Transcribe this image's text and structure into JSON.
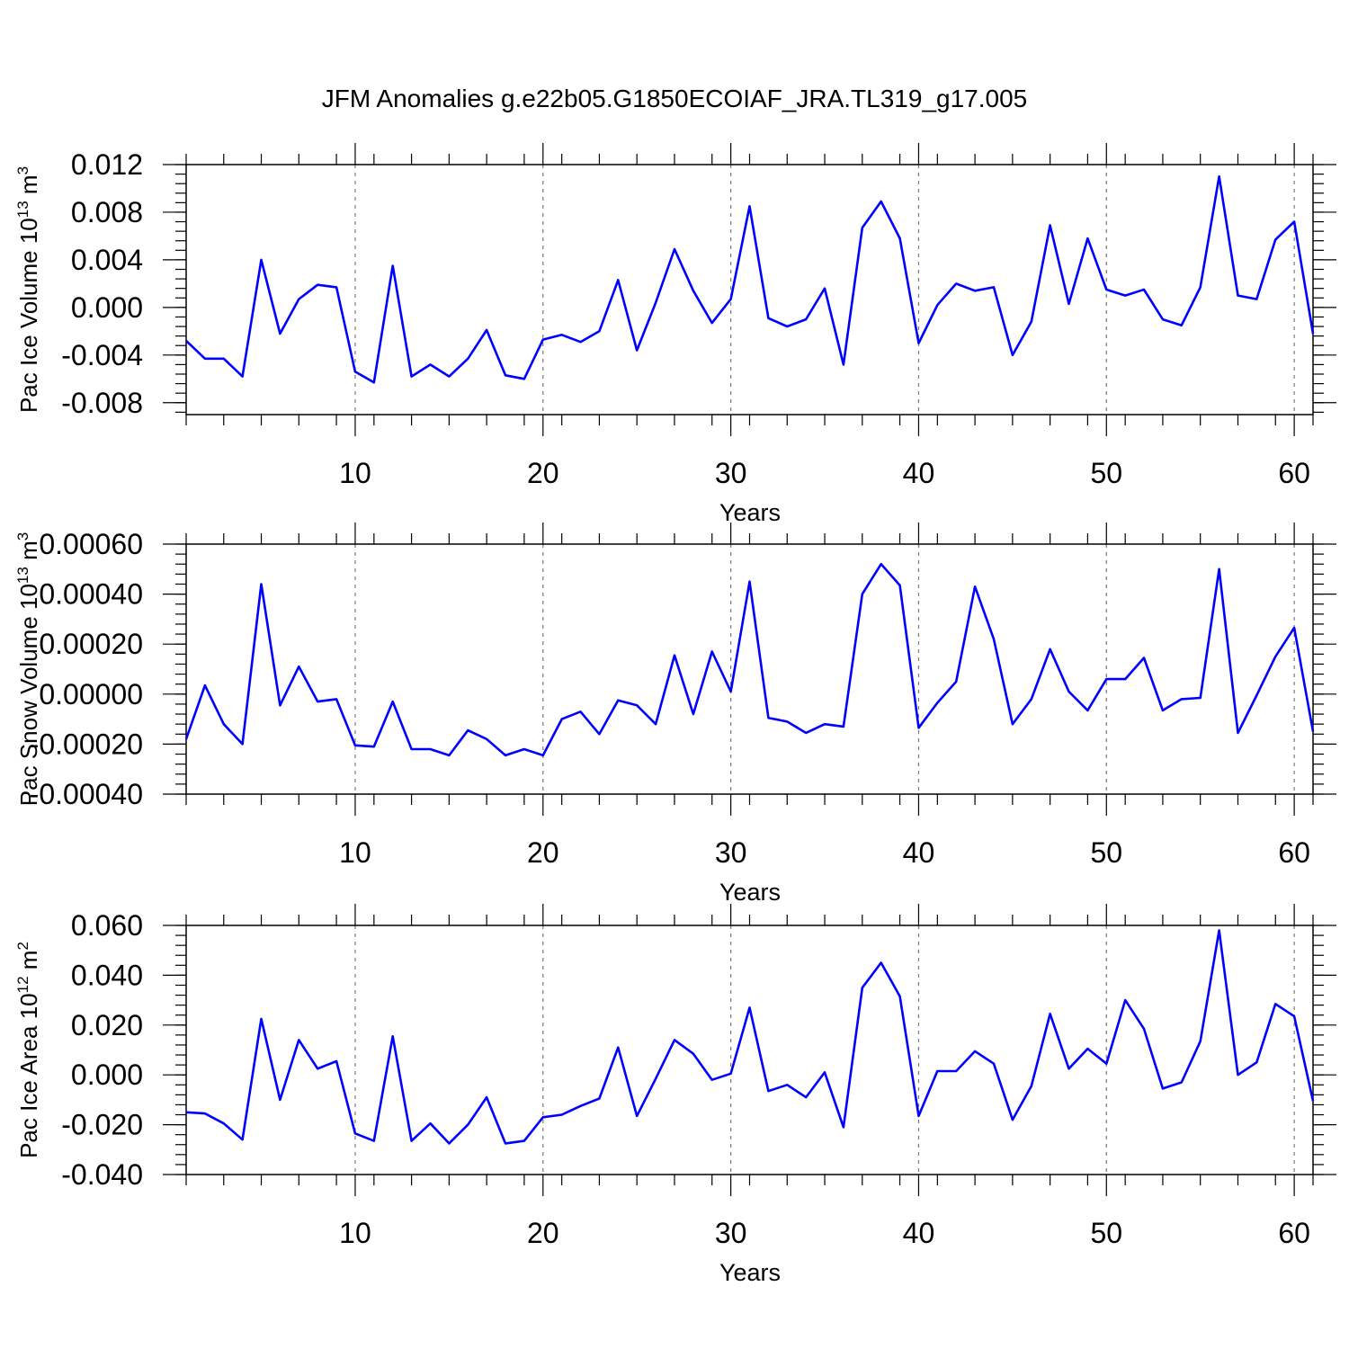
{
  "chart_data": {
    "title": "JFM Anomalies g.e22b05.G1850ECOIAF_JRA.TL319_g17.005",
    "line_color": "#0000ff",
    "panels": [
      {
        "type": "line",
        "ylabel": {
          "main": "Pac Ice Volume 10",
          "exp": "13",
          "unit": " m",
          "unit_exp": "3"
        },
        "xlabel": "Years",
        "xlim": [
          1,
          61
        ],
        "ylim": [
          -0.009,
          0.012
        ],
        "xticks": [
          10,
          20,
          30,
          40,
          50,
          60
        ],
        "xtick_labels": [
          "10",
          "20",
          "30",
          "40",
          "50",
          "60"
        ],
        "yticks": [
          -0.008,
          -0.004,
          0.0,
          0.004,
          0.008,
          0.012
        ],
        "ytick_labels": [
          "-0.008",
          "-0.004",
          "0.000",
          "0.004",
          "0.008",
          "0.012"
        ],
        "grid": "vertical dashed at x ticks",
        "x": [
          1,
          2,
          3,
          4,
          5,
          6,
          7,
          8,
          9,
          10,
          11,
          12,
          13,
          14,
          15,
          16,
          17,
          18,
          19,
          20,
          21,
          22,
          23,
          24,
          25,
          26,
          27,
          28,
          29,
          30,
          31,
          32,
          33,
          34,
          35,
          36,
          37,
          38,
          39,
          40,
          41,
          42,
          43,
          44,
          45,
          46,
          47,
          48,
          49,
          50,
          51,
          52,
          53,
          54,
          55,
          56,
          57,
          58,
          59,
          60,
          61
        ],
        "values": [
          -0.0028,
          -0.0043,
          -0.0043,
          -0.0058,
          0.004,
          -0.0022,
          0.0007,
          0.0019,
          0.0017,
          -0.0054,
          -0.0063,
          0.0035,
          -0.0058,
          -0.0048,
          -0.0058,
          -0.0043,
          -0.0019,
          -0.0057,
          -0.006,
          -0.0027,
          -0.0023,
          -0.0029,
          -0.002,
          0.0023,
          -0.0036,
          0.0004,
          0.0049,
          0.0014,
          -0.0013,
          0.0007,
          0.0085,
          -0.0009,
          -0.0016,
          -0.001,
          0.0016,
          -0.0048,
          0.0067,
          0.0089,
          0.0058,
          -0.003,
          0.0002,
          0.002,
          0.0014,
          0.0017,
          -0.004,
          -0.0012,
          0.0069,
          0.0003,
          0.0058,
          0.0015,
          0.001,
          0.0015,
          -0.001,
          -0.0015,
          0.0017,
          0.011,
          0.001,
          0.0007,
          0.0057,
          0.0072,
          -0.0022
        ]
      },
      {
        "type": "line",
        "ylabel": {
          "main": "Pac Snow Volume 10",
          "exp": "13",
          "unit": " m",
          "unit_exp": "3"
        },
        "xlabel": "Years",
        "xlim": [
          1,
          61
        ],
        "ylim": [
          -0.0004,
          0.0006
        ],
        "xticks": [
          10,
          20,
          30,
          40,
          50,
          60
        ],
        "xtick_labels": [
          "10",
          "20",
          "30",
          "40",
          "50",
          "60"
        ],
        "yticks": [
          -0.0004,
          -0.0002,
          0.0,
          0.0002,
          0.0004,
          0.0006
        ],
        "ytick_labels": [
          "-0.00040",
          "-0.00020",
          "0.00000",
          "0.00020",
          "0.00040",
          "0.00060"
        ],
        "grid": "vertical dashed at x ticks",
        "x": [
          1,
          2,
          3,
          4,
          5,
          6,
          7,
          8,
          9,
          10,
          11,
          12,
          13,
          14,
          15,
          16,
          17,
          18,
          19,
          20,
          21,
          22,
          23,
          24,
          25,
          26,
          27,
          28,
          29,
          30,
          31,
          32,
          33,
          34,
          35,
          36,
          37,
          38,
          39,
          40,
          41,
          42,
          43,
          44,
          45,
          46,
          47,
          48,
          49,
          50,
          51,
          52,
          53,
          54,
          55,
          56,
          57,
          58,
          59,
          60,
          61
        ],
        "values": [
          -0.00018,
          3.5e-05,
          -0.00012,
          -0.0002,
          0.00044,
          -4.5e-05,
          0.00011,
          -3e-05,
          -2e-05,
          -0.000205,
          -0.00021,
          -3e-05,
          -0.00022,
          -0.00022,
          -0.000245,
          -0.000145,
          -0.00018,
          -0.000245,
          -0.00022,
          -0.000245,
          -0.0001,
          -7e-05,
          -0.00016,
          -2.5e-05,
          -4.5e-05,
          -0.00012,
          0.000155,
          -8e-05,
          0.00017,
          1e-05,
          0.00045,
          -9.5e-05,
          -0.00011,
          -0.000155,
          -0.00012,
          -0.00013,
          0.0004,
          0.00052,
          0.000435,
          -0.000135,
          -3.5e-05,
          5e-05,
          0.00043,
          0.00022,
          -0.00012,
          -2e-05,
          0.00018,
          1e-05,
          -6.5e-05,
          6e-05,
          6e-05,
          0.000145,
          -6.5e-05,
          -2e-05,
          -1.5e-05,
          0.0005,
          -0.000155,
          -5e-06,
          0.00015,
          0.000265,
          -0.00015
        ]
      },
      {
        "type": "line",
        "ylabel": {
          "main": "Pac Ice Area 10",
          "exp": "12",
          "unit": " m",
          "unit_exp": "2"
        },
        "xlabel": "Years",
        "xlim": [
          1,
          61
        ],
        "ylim": [
          -0.04,
          0.06
        ],
        "xticks": [
          10,
          20,
          30,
          40,
          50,
          60
        ],
        "xtick_labels": [
          "10",
          "20",
          "30",
          "40",
          "50",
          "60"
        ],
        "yticks": [
          -0.04,
          -0.02,
          0.0,
          0.02,
          0.04,
          0.06
        ],
        "ytick_labels": [
          "-0.040",
          "-0.020",
          "0.000",
          "0.020",
          "0.040",
          "0.060"
        ],
        "grid": "vertical dashed at x ticks",
        "x": [
          1,
          2,
          3,
          4,
          5,
          6,
          7,
          8,
          9,
          10,
          11,
          12,
          13,
          14,
          15,
          16,
          17,
          18,
          19,
          20,
          21,
          22,
          23,
          24,
          25,
          26,
          27,
          28,
          29,
          30,
          31,
          32,
          33,
          34,
          35,
          36,
          37,
          38,
          39,
          40,
          41,
          42,
          43,
          44,
          45,
          46,
          47,
          48,
          49,
          50,
          51,
          52,
          53,
          54,
          55,
          56,
          57,
          58,
          59,
          60,
          61
        ],
        "values": [
          -0.015,
          -0.0155,
          -0.0195,
          -0.026,
          0.0225,
          -0.01,
          0.014,
          0.0025,
          0.0055,
          -0.0235,
          -0.0265,
          0.0155,
          -0.0265,
          -0.0195,
          -0.0275,
          -0.02,
          -0.009,
          -0.0275,
          -0.0265,
          -0.017,
          -0.016,
          -0.0125,
          -0.0095,
          0.011,
          -0.0165,
          -0.0015,
          0.014,
          0.0085,
          -0.002,
          0.0005,
          0.027,
          -0.0065,
          -0.004,
          -0.009,
          0.001,
          -0.021,
          0.035,
          0.045,
          0.0315,
          -0.0165,
          0.0015,
          0.0015,
          0.0095,
          0.0045,
          -0.018,
          -0.0045,
          0.0245,
          0.0025,
          0.0105,
          0.0045,
          0.03,
          0.0185,
          -0.0055,
          -0.003,
          0.0135,
          0.058,
          0.0,
          0.005,
          0.0285,
          0.0235,
          -0.0105
        ]
      }
    ]
  }
}
